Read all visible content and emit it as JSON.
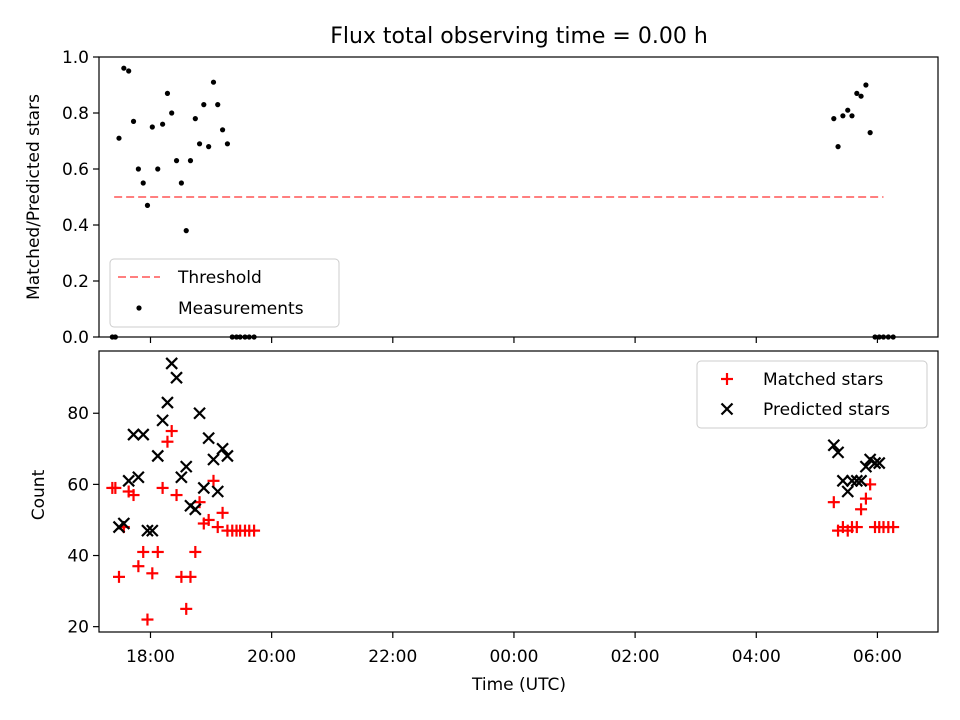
{
  "chart_data": [
    {
      "type": "scatter",
      "title": "Flux total observing time = 0.00 h",
      "xlabel": "",
      "ylabel": "Matched/Predicted stars",
      "xlim": [
        -6.85,
        7.0
      ],
      "ylim": [
        0.0,
        1.0
      ],
      "x_ticks": [
        -6,
        -4,
        -2,
        0,
        2,
        4,
        6
      ],
      "y_ticks": [
        0.0,
        0.2,
        0.4,
        0.6,
        0.8,
        1.0
      ],
      "y_tick_labels": [
        "0.0",
        "0.2",
        "0.4",
        "0.6",
        "0.8",
        "1.0"
      ],
      "legend": {
        "location": "lower-left",
        "entries": [
          "Threshold",
          "Measurements"
        ]
      },
      "threshold": {
        "name": "Threshold",
        "value": 0.5,
        "x_start": -6.6,
        "x_end": 6.1,
        "color": "#ff7f7f"
      },
      "series": [
        {
          "name": "Measurements",
          "color": "#000000",
          "x": [
            -6.63,
            -6.58,
            -6.52,
            -6.44,
            -6.36,
            -6.28,
            -6.2,
            -6.12,
            -6.05,
            -5.97,
            -5.88,
            -5.8,
            -5.72,
            -5.65,
            -5.57,
            -5.49,
            -5.41,
            -5.34,
            -5.26,
            -5.19,
            -5.12,
            -5.04,
            -4.96,
            -4.89,
            -4.81,
            -4.73,
            -4.65,
            -4.58,
            -4.52,
            -4.44,
            -4.37,
            -4.29,
            5.28,
            5.35,
            5.43,
            5.51,
            5.58,
            5.66,
            5.73,
            5.81,
            5.88,
            5.96,
            6.03,
            6.1,
            6.18,
            6.26
          ],
          "y": [
            0.0,
            0.0,
            0.71,
            0.96,
            0.95,
            0.77,
            0.6,
            0.55,
            0.47,
            0.75,
            0.6,
            0.76,
            0.87,
            0.8,
            0.63,
            0.55,
            0.38,
            0.63,
            0.78,
            0.69,
            0.83,
            0.68,
            0.91,
            0.83,
            0.74,
            0.69,
            0.0,
            0.0,
            0.0,
            0.0,
            0.0,
            0.0,
            0.78,
            0.68,
            0.79,
            0.81,
            0.79,
            0.87,
            0.86,
            0.9,
            0.73,
            0.0,
            0.0,
            0.0,
            0.0,
            0.0
          ]
        }
      ]
    },
    {
      "type": "scatter",
      "title": "",
      "xlabel": "Time (UTC)",
      "ylabel": "Count",
      "xlim": [
        -6.85,
        7.0
      ],
      "ylim": [
        18.5,
        97.5
      ],
      "x_ticks": [
        -6,
        -4,
        -2,
        0,
        2,
        4,
        6
      ],
      "x_tick_labels": [
        "18:00",
        "20:00",
        "22:00",
        "00:00",
        "02:00",
        "04:00",
        "06:00"
      ],
      "y_ticks": [
        20,
        40,
        60,
        80
      ],
      "y_tick_labels": [
        "20",
        "40",
        "60",
        "80"
      ],
      "legend": {
        "location": "upper-right",
        "entries": [
          "Matched stars",
          "Predicted stars"
        ]
      },
      "series": [
        {
          "name": "Matched stars",
          "marker": "plus",
          "color": "#ff0000",
          "x": [
            -6.63,
            -6.58,
            -6.52,
            -6.44,
            -6.36,
            -6.28,
            -6.2,
            -6.12,
            -6.05,
            -5.97,
            -5.88,
            -5.8,
            -5.72,
            -5.65,
            -5.57,
            -5.49,
            -5.41,
            -5.34,
            -5.26,
            -5.19,
            -5.12,
            -5.04,
            -4.96,
            -4.89,
            -4.81,
            -4.73,
            -4.65,
            -4.58,
            -4.52,
            -4.44,
            -4.37,
            -4.29,
            5.28,
            5.35,
            5.43,
            5.51,
            5.58,
            5.66,
            5.73,
            5.81,
            5.88,
            5.96,
            6.03,
            6.1,
            6.18,
            6.26
          ],
          "y": [
            59,
            59,
            34,
            48,
            58,
            57,
            37,
            41,
            22,
            35,
            41,
            59,
            72,
            75,
            57,
            34,
            25,
            34,
            41,
            55,
            49,
            50,
            61,
            48,
            52,
            47,
            47,
            47,
            47,
            47,
            47,
            47,
            55,
            47,
            48,
            47,
            48,
            48,
            53,
            56,
            60,
            48,
            48,
            48,
            48,
            48
          ]
        },
        {
          "name": "Predicted stars",
          "marker": "x",
          "color": "#000000",
          "x": [
            -6.52,
            -6.44,
            -6.36,
            -6.28,
            -6.2,
            -6.12,
            -6.05,
            -5.97,
            -5.88,
            -5.8,
            -5.72,
            -5.65,
            -5.57,
            -5.49,
            -5.41,
            -5.34,
            -5.26,
            -5.19,
            -5.12,
            -5.04,
            -4.96,
            -4.89,
            -4.81,
            -4.73,
            5.28,
            5.35,
            5.43,
            5.51,
            5.58,
            5.66,
            5.73,
            5.81,
            5.88,
            5.96,
            6.03
          ],
          "y": [
            48,
            49,
            61,
            74,
            62,
            74,
            47,
            47,
            68,
            78,
            83,
            94,
            90,
            62,
            65,
            54,
            53,
            80,
            59,
            73,
            67,
            58,
            70,
            68,
            71,
            69,
            61,
            58,
            61,
            61,
            61,
            65,
            67,
            66,
            66
          ]
        }
      ]
    }
  ]
}
